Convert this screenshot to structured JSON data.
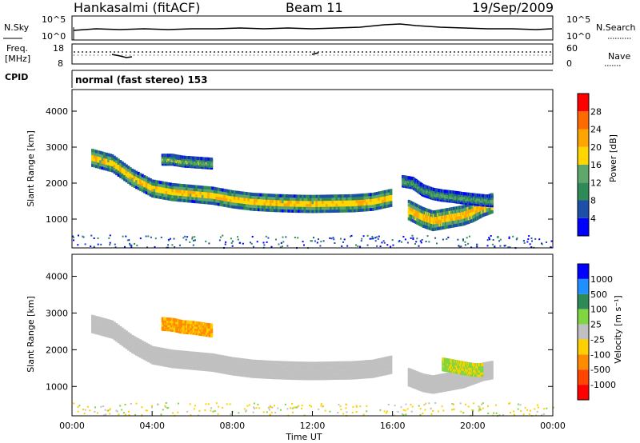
{
  "header": {
    "station": "Hankasalmi (fitACF)",
    "beam": "Beam 11",
    "date": "19/Sep/2009"
  },
  "sky_panel": {
    "left_label": "N.Sky",
    "right_label": "N.Search",
    "left_ticks": [
      "10^5",
      "10^0"
    ],
    "right_ticks": [
      "10^5",
      "10^0"
    ]
  },
  "freq_panel": {
    "left_label_line1": "Freq.",
    "left_label_line2": "[MHz]",
    "right_label": "Nave",
    "left_ticks": [
      "18",
      "8"
    ],
    "right_ticks": [
      "60",
      "0"
    ]
  },
  "cpid": {
    "label": "CPID",
    "value": "normal (fast stereo) 153"
  },
  "colors": {
    "power_scale": [
      "#0000ff",
      "#1e4fa8",
      "#2e8b57",
      "#5fa66a",
      "#ffd700",
      "#ffa500",
      "#ff6a00",
      "#ff0000"
    ],
    "velocity_scale": [
      "#ff0000",
      "#ff4500",
      "#ff8c00",
      "#ffd000",
      "#c0c0c0",
      "#7fd640",
      "#2e8b57",
      "#1e90ff",
      "#0000ff"
    ],
    "ground_scatter": "#c0c0c0"
  },
  "chart_data": [
    {
      "type": "heatmap",
      "name": "power",
      "ylabel": "Slant Range [km]",
      "yticks": [
        1000,
        2000,
        3000,
        4000
      ],
      "ylim": [
        200,
        4600
      ],
      "xlim": [
        0,
        24
      ],
      "colorbar_label": "Power [dB]",
      "colorbar_ticks": [
        4,
        8,
        12,
        16,
        20,
        24,
        28
      ],
      "colorbar_range": [
        0,
        32
      ],
      "bands": [
        {
          "x": [
            1.0,
            2.0,
            3.0,
            4.0,
            5.0,
            6.0,
            7.0,
            8.0,
            9.0,
            10.0,
            11.0,
            12.0,
            13.0,
            14.0,
            15.0,
            16.0
          ],
          "y": [
            2700,
            2550,
            2150,
            1850,
            1750,
            1700,
            1650,
            1550,
            1480,
            1450,
            1430,
            1420,
            1430,
            1440,
            1480,
            1600
          ],
          "width": 260,
          "level": 22
        },
        {
          "x": [
            4.5,
            5.0,
            5.5,
            6.0,
            6.5,
            7.0
          ],
          "y": [
            2650,
            2650,
            2600,
            2580,
            2560,
            2540
          ],
          "width": 150,
          "level": 16
        },
        {
          "x": [
            16.8,
            17.5,
            18.0,
            18.5,
            19.0,
            19.5,
            20.0,
            20.5,
            21.0
          ],
          "y": [
            1250,
            1050,
            950,
            1000,
            1050,
            1100,
            1200,
            1350,
            1450
          ],
          "width": 300,
          "level": 24
        },
        {
          "x": [
            16.5,
            17.0,
            17.5,
            18.0,
            18.5,
            19.0,
            19.5,
            20.0,
            20.5,
            21.0
          ],
          "y": [
            2050,
            2000,
            1800,
            1700,
            1650,
            1620,
            1580,
            1550,
            1520,
            1500
          ],
          "width": 160,
          "level": 14
        }
      ]
    },
    {
      "type": "heatmap",
      "name": "velocity",
      "ylabel": "Slant Range [km]",
      "yticks": [
        1000,
        2000,
        3000,
        4000
      ],
      "ylim": [
        200,
        4600
      ],
      "xlim": [
        0,
        24
      ],
      "xticks": [
        "00:00",
        "04:00",
        "08:00",
        "12:00",
        "16:00",
        "20:00",
        "00:00"
      ],
      "xlabel": "Time UT",
      "colorbar_label": "Velocity [m s⁻¹]",
      "colorbar_ticks": [
        "1000",
        "500",
        "100",
        "25",
        "-25",
        "-100",
        "-500",
        "-1000"
      ],
      "bands": [
        {
          "x": [
            1.0,
            2.0,
            3.0,
            4.0,
            5.0,
            6.0,
            7.0,
            8.0,
            9.0,
            10.0,
            11.0,
            12.0,
            13.0,
            14.0,
            15.0,
            16.0
          ],
          "y": [
            2700,
            2550,
            2150,
            1850,
            1750,
            1700,
            1650,
            1550,
            1480,
            1450,
            1430,
            1420,
            1430,
            1440,
            1480,
            1600
          ],
          "width": 260,
          "class": "ground"
        },
        {
          "x": [
            4.5,
            5.0,
            5.5,
            6.0,
            6.5,
            7.0
          ],
          "y": [
            2700,
            2680,
            2620,
            2600,
            2560,
            2520
          ],
          "width": 180,
          "class": "negative"
        },
        {
          "x": [
            16.8,
            17.5,
            18.0,
            18.5,
            19.0,
            19.5,
            20.0,
            20.5,
            21.0
          ],
          "y": [
            1250,
            1100,
            1050,
            1100,
            1150,
            1200,
            1300,
            1400,
            1450
          ],
          "width": 260,
          "class": "ground"
        },
        {
          "x": [
            18.5,
            19.0,
            19.5,
            20.0,
            20.5
          ],
          "y": [
            1600,
            1550,
            1500,
            1450,
            1450
          ],
          "width": 180,
          "class": "positive"
        }
      ]
    }
  ]
}
